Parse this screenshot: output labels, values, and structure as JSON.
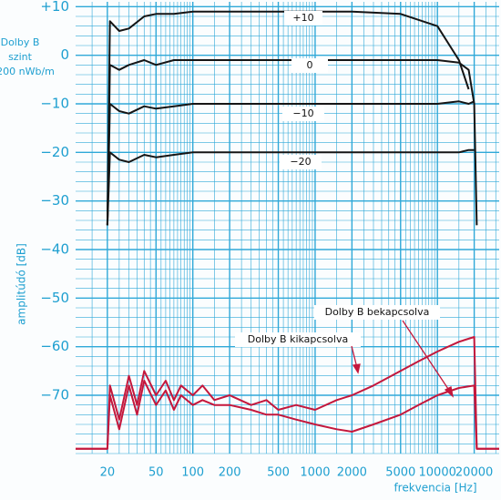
{
  "chart_data": {
    "type": "line",
    "scale_note": [
      "Dolby B",
      "szint",
      "200 nWb/m"
    ],
    "ylabel": "amplitúdó [dB]",
    "xlabel": "frekvencia [Hz]",
    "log_x": true,
    "grid": true,
    "minor_grid": true,
    "grid_color": "#2fa8d8",
    "xlim": [
      11,
      32000
    ],
    "ylim": [
      -82,
      11
    ],
    "xticks": [
      20,
      50,
      100,
      200,
      500,
      1000,
      2000,
      5000,
      10000,
      20000
    ],
    "yticks": [
      {
        "value": 10,
        "label": "+10"
      },
      0,
      {
        "value": -10,
        "label": "−10"
      },
      {
        "value": -20,
        "label": "−20"
      },
      {
        "value": -30,
        "label": "−30"
      },
      {
        "value": -40,
        "label": "−40"
      },
      {
        "value": -50,
        "label": "−50"
      },
      {
        "value": -60,
        "label": "−60"
      },
      {
        "value": -70,
        "label": "−70"
      }
    ],
    "annotations": [
      "+10",
      "0",
      "−10",
      "−20",
      "Dolby B bekapcsolva",
      "Dolby B kikapcsolva"
    ],
    "series": [
      {
        "color": "#151515",
        "x": [
          20,
          21,
          25,
          30,
          40,
          50,
          70,
          100,
          200,
          500,
          1000,
          2000,
          5000,
          10000,
          15000,
          18000,
          20000,
          21000
        ],
        "values": [
          -35,
          7,
          5,
          5.5,
          8,
          8.5,
          8.5,
          9,
          9,
          9,
          9,
          9,
          8.5,
          6,
          -1,
          -7,
          null,
          null
        ]
      },
      {
        "color": "#151515",
        "x": [
          20,
          21,
          25,
          30,
          40,
          50,
          70,
          100,
          200,
          500,
          1000,
          2000,
          5000,
          10000,
          15000,
          18000,
          20000,
          21000
        ],
        "values": [
          -35,
          -2,
          -3,
          -2,
          -1,
          -2,
          -1,
          -1,
          -1,
          -1,
          -1,
          -1,
          -1,
          -1,
          -1.5,
          -3,
          -10,
          -35
        ]
      },
      {
        "color": "#151515",
        "x": [
          20,
          21,
          25,
          30,
          40,
          50,
          70,
          100,
          200,
          500,
          1000,
          2000,
          5000,
          10000,
          15000,
          18000,
          20000,
          21000
        ],
        "values": [
          -35,
          -10,
          -11.5,
          -12,
          -10.5,
          -11,
          -10.5,
          -10,
          -10,
          -10,
          -10,
          -10,
          -10,
          -10,
          -9.5,
          -10,
          -9.5,
          null
        ]
      },
      {
        "color": "#151515",
        "x": [
          20,
          21,
          25,
          30,
          40,
          50,
          70,
          100,
          200,
          500,
          1000,
          2000,
          5000,
          10000,
          15000,
          18000,
          20000,
          21000
        ],
        "values": [
          -35,
          -20,
          -21.5,
          -22,
          -20.5,
          -21,
          -20.5,
          -20,
          -20,
          -20,
          -20,
          -20,
          -20,
          -20,
          -20,
          -19.5,
          -19.5,
          null
        ]
      },
      {
        "color": "#c4173c",
        "x": [
          11,
          20,
          21,
          25,
          30,
          35,
          40,
          50,
          60,
          70,
          80,
          100,
          120,
          150,
          200,
          300,
          400,
          500,
          700,
          1000,
          1500,
          2000,
          3000,
          5000,
          7000,
          10000,
          15000,
          20000,
          21000,
          32000
        ],
        "values": [
          -81,
          -81,
          -68,
          -75,
          -66,
          -72,
          -65,
          -70,
          -67,
          -71,
          -68,
          -70,
          -68,
          -71,
          -70,
          -72,
          -71,
          -73,
          -72,
          -73,
          -71,
          -70,
          -68,
          -65,
          -63,
          -61,
          -59,
          -58,
          -81,
          -81
        ]
      },
      {
        "color": "#c4173c",
        "x": [
          11,
          20,
          21,
          25,
          30,
          35,
          40,
          50,
          60,
          70,
          80,
          100,
          120,
          150,
          200,
          300,
          400,
          500,
          700,
          1000,
          1500,
          2000,
          3000,
          5000,
          7000,
          10000,
          15000,
          20000,
          21000,
          32000
        ],
        "values": [
          -81,
          -81,
          -70,
          -77,
          -68,
          -74,
          -67,
          -72,
          -69,
          -73,
          -70,
          -72,
          -71,
          -72,
          -72,
          -73,
          -74,
          -74,
          -75,
          -76,
          -77,
          -77.5,
          -76,
          -74,
          -72,
          -70,
          -68.5,
          -68,
          -81,
          -81
        ]
      }
    ]
  }
}
